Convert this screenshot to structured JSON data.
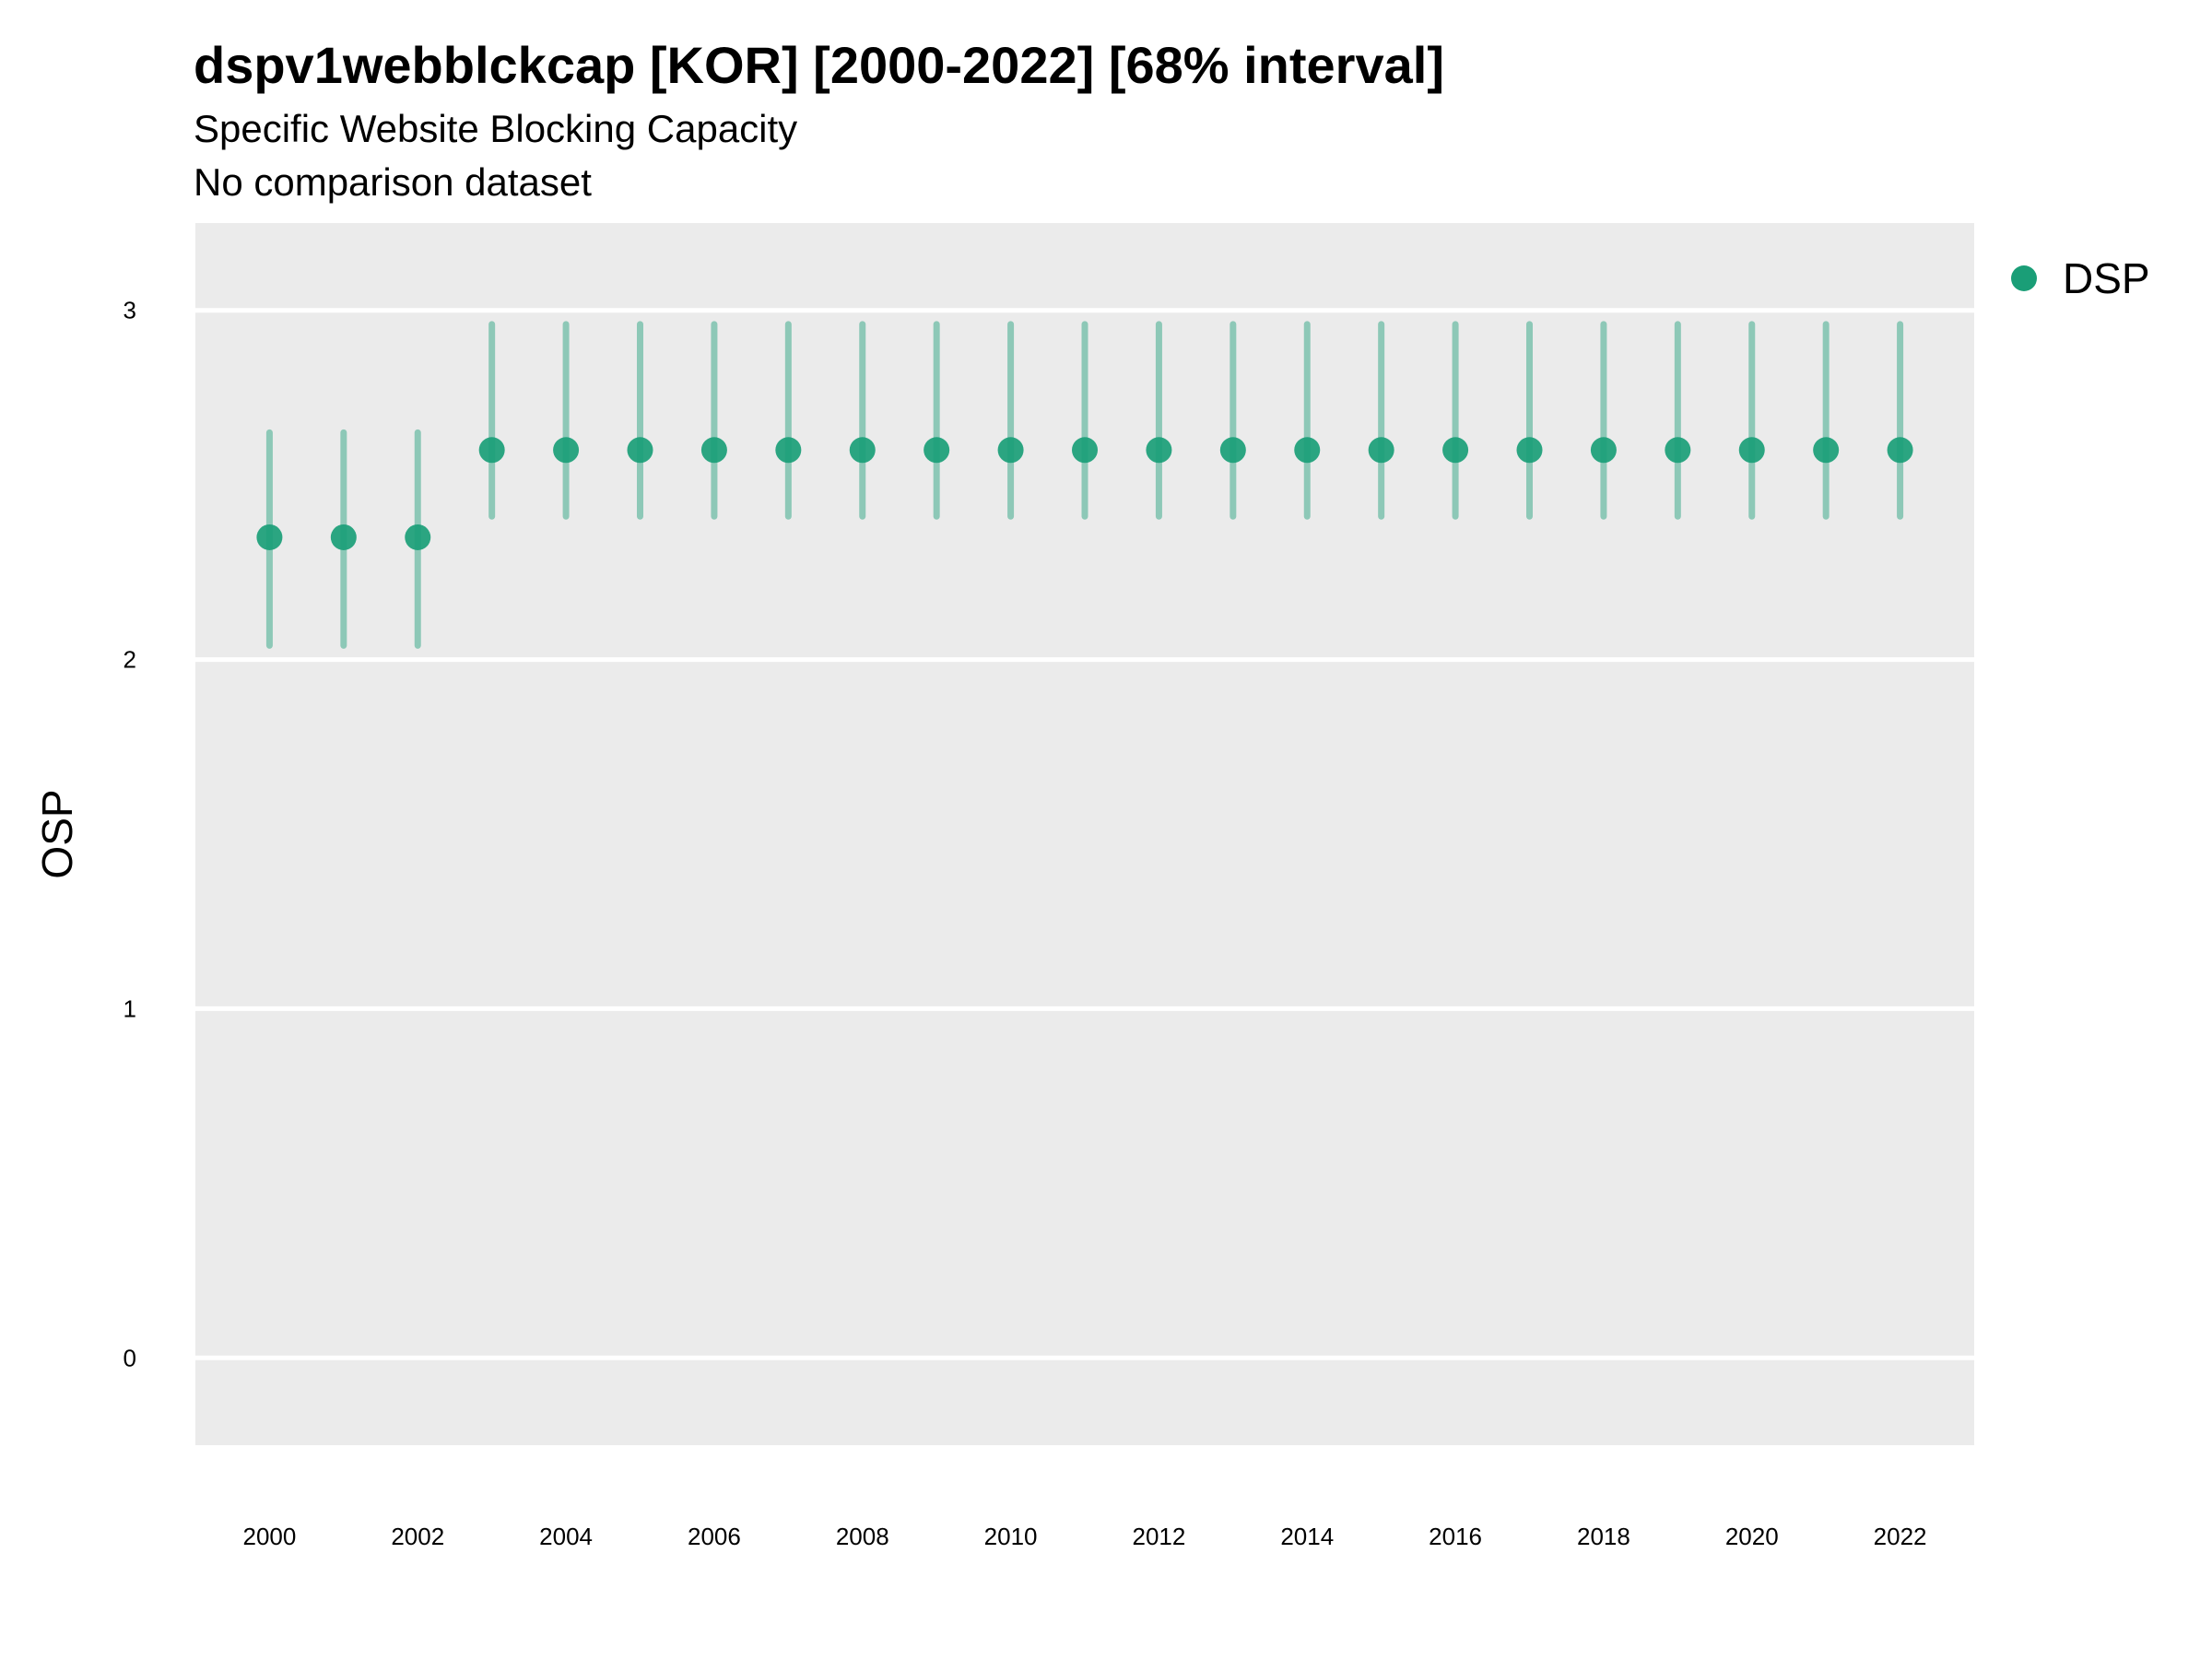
{
  "chart_data": {
    "type": "scatter",
    "title": "dspv1webblckcap [KOR] [2000-2022] [68% interval]",
    "subtitle": "Specific Website Blocking Capacity",
    "caption": "No comparison dataset",
    "xlabel": "",
    "ylabel": "OSP",
    "xlim": [
      1999,
      2023
    ],
    "ylim": [
      -0.25,
      3.25
    ],
    "x_ticks": [
      "2000",
      "2002",
      "2004",
      "2006",
      "2008",
      "2010",
      "2012",
      "2014",
      "2016",
      "2018",
      "2020",
      "2022"
    ],
    "y_ticks": [
      "0",
      "1",
      "2",
      "3"
    ],
    "grid": true,
    "legend": {
      "position": "right-top"
    },
    "colors": {
      "point": "#1a9e77",
      "interval": "#1a9e77",
      "panel": "#ebebeb",
      "grid": "#ffffff"
    },
    "series": [
      {
        "name": "DSP",
        "x": [
          2000,
          2001,
          2002,
          2003,
          2004,
          2005,
          2006,
          2007,
          2008,
          2009,
          2010,
          2011,
          2012,
          2013,
          2014,
          2015,
          2016,
          2017,
          2018,
          2019,
          2020,
          2021,
          2022
        ],
        "y": [
          2.35,
          2.35,
          2.35,
          2.6,
          2.6,
          2.6,
          2.6,
          2.6,
          2.6,
          2.6,
          2.6,
          2.6,
          2.6,
          2.6,
          2.6,
          2.6,
          2.6,
          2.6,
          2.6,
          2.6,
          2.6,
          2.6,
          2.6
        ],
        "lower": [
          2.04,
          2.04,
          2.04,
          2.41,
          2.41,
          2.41,
          2.41,
          2.41,
          2.41,
          2.41,
          2.41,
          2.41,
          2.41,
          2.41,
          2.41,
          2.41,
          2.41,
          2.41,
          2.41,
          2.41,
          2.41,
          2.41,
          2.41
        ],
        "upper": [
          2.65,
          2.65,
          2.65,
          2.96,
          2.96,
          2.96,
          2.96,
          2.96,
          2.96,
          2.96,
          2.96,
          2.96,
          2.96,
          2.96,
          2.96,
          2.96,
          2.96,
          2.96,
          2.96,
          2.96,
          2.96,
          2.96,
          2.96
        ]
      }
    ]
  }
}
